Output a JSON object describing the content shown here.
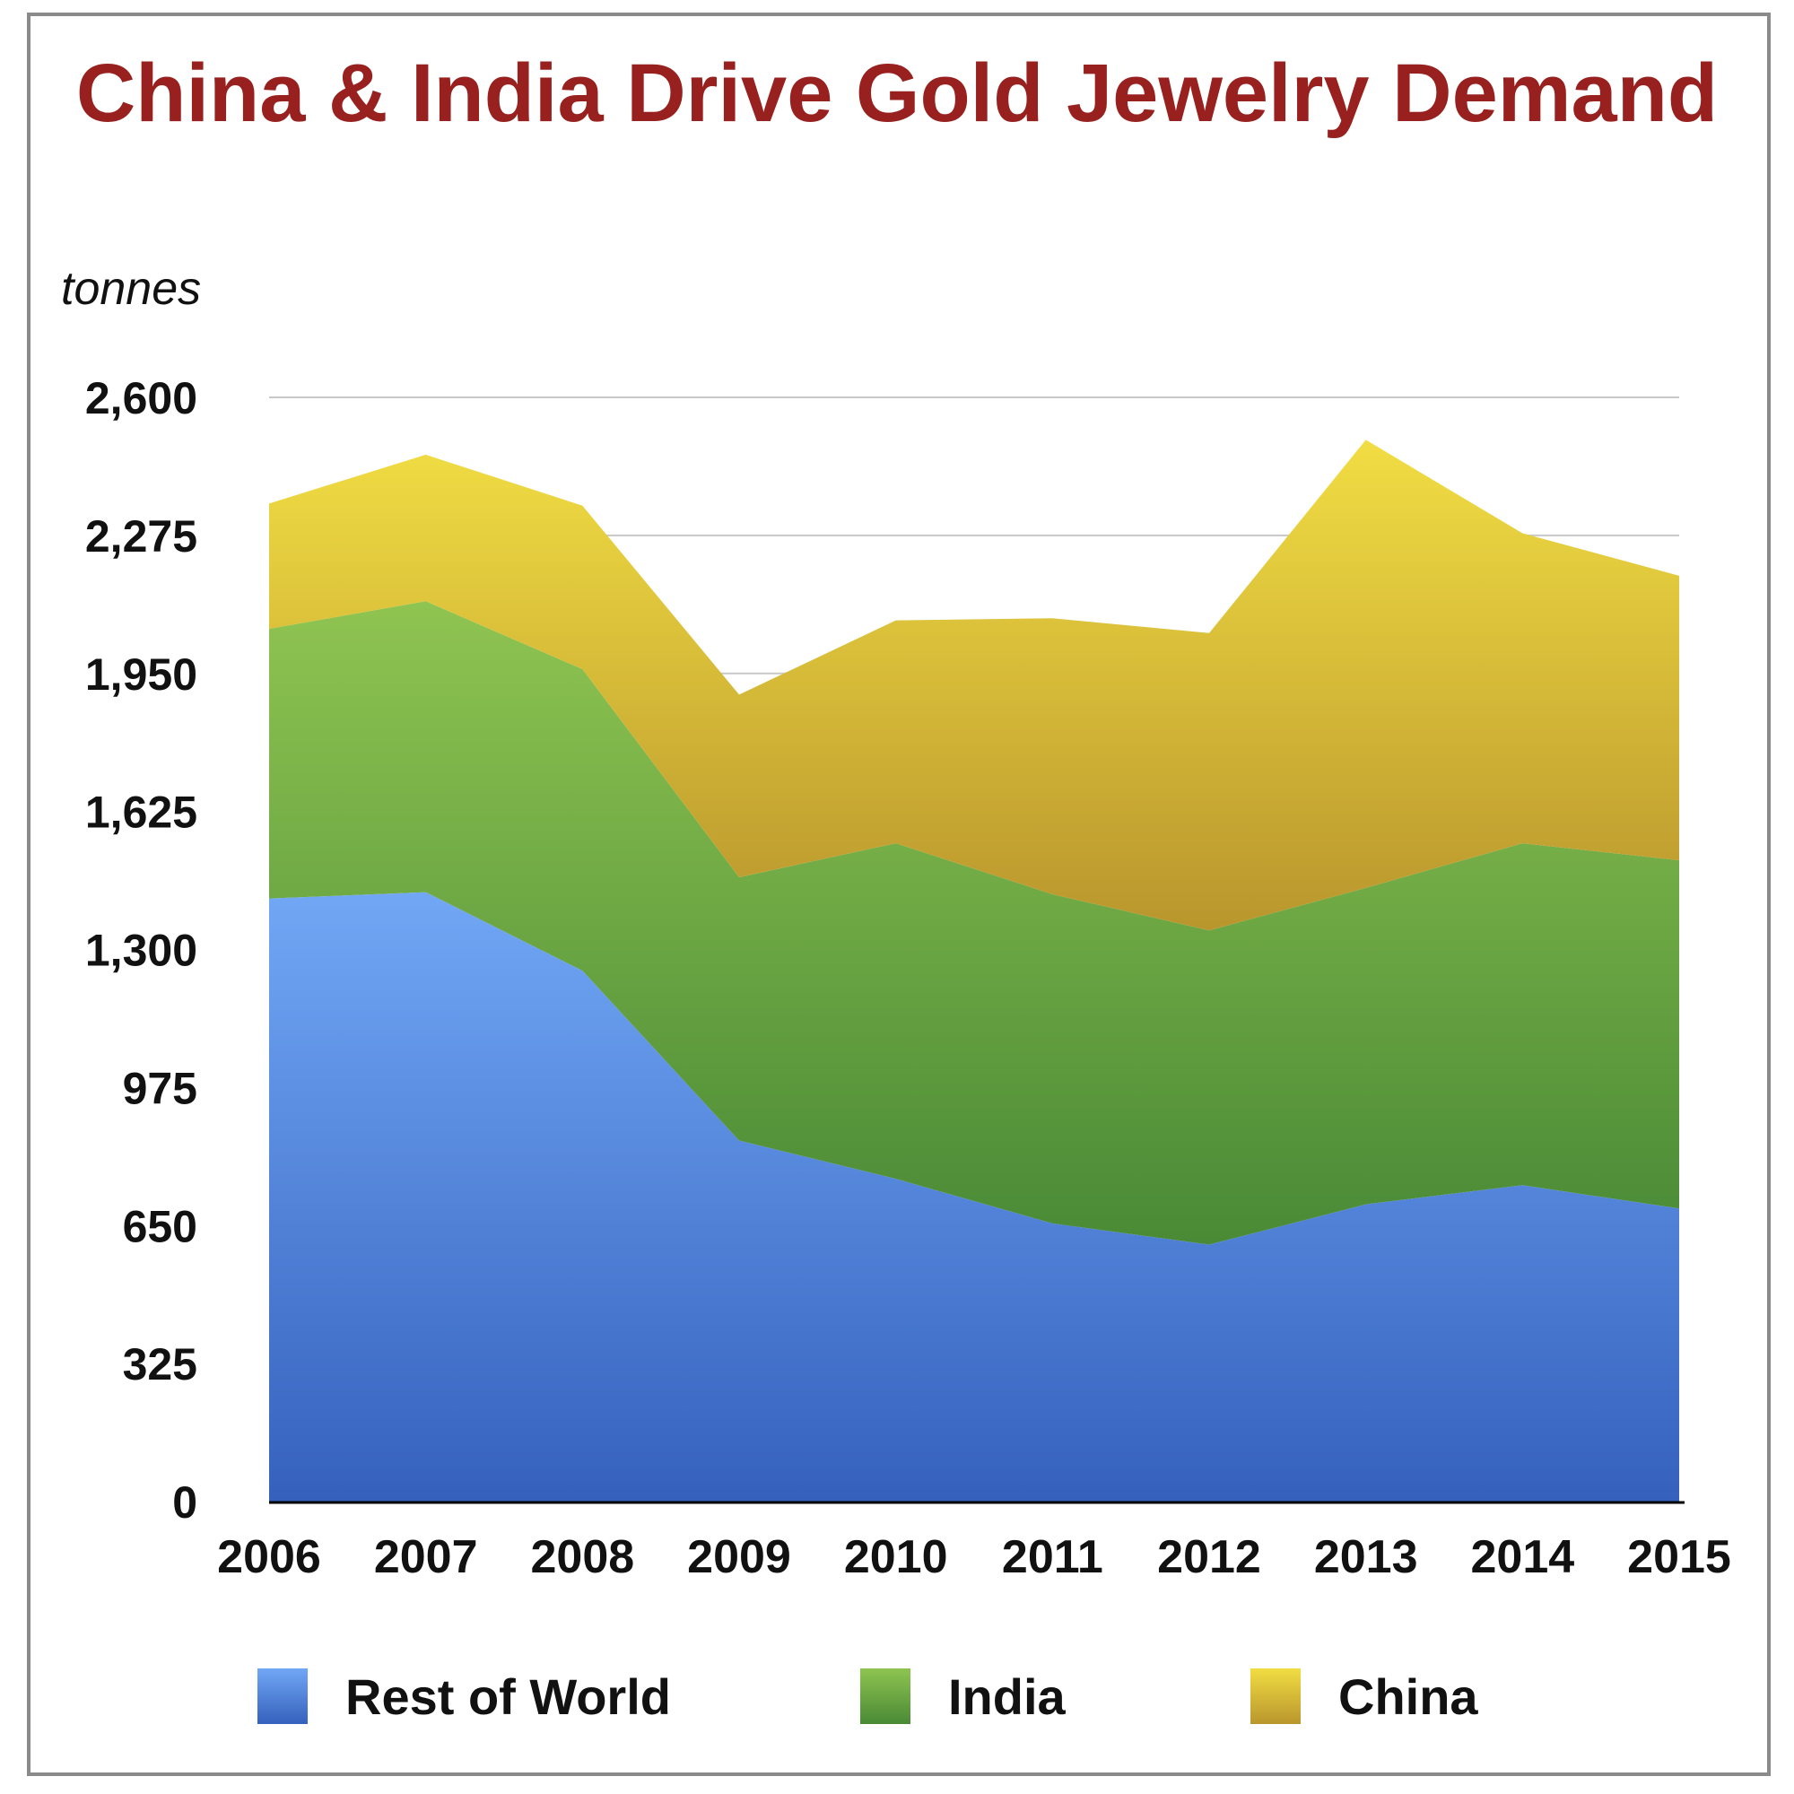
{
  "chart_data": {
    "type": "area",
    "stacked": true,
    "title": "China & India Drive Gold Jewelry Demand",
    "ylabel": "tonnes",
    "xlabel": "",
    "categories": [
      "2006",
      "2007",
      "2008",
      "2009",
      "2010",
      "2011",
      "2012",
      "2013",
      "2014",
      "2015"
    ],
    "series": [
      {
        "name": "Rest of World",
        "values": [
          1420,
          1435,
          1250,
          850,
          760,
          655,
          605,
          700,
          745,
          690
        ],
        "color_top": "#71a7f5",
        "color_bottom": "#3561bd"
      },
      {
        "name": "India",
        "values": [
          635,
          685,
          710,
          620,
          790,
          775,
          740,
          745,
          805,
          820
        ],
        "color_top": "#8fc451",
        "color_bottom": "#4a8a36"
      },
      {
        "name": "China",
        "values": [
          295,
          345,
          385,
          430,
          525,
          650,
          700,
          1055,
          730,
          670
        ],
        "color_top": "#f1dd43",
        "color_bottom": "#b9962d"
      }
    ],
    "ylim": [
      0,
      2600
    ],
    "yticks": [
      "0",
      "325",
      "650",
      "975",
      "1,300",
      "1,625",
      "1,950",
      "2,275",
      "2,600"
    ],
    "grid": true,
    "legend_position": "bottom"
  }
}
